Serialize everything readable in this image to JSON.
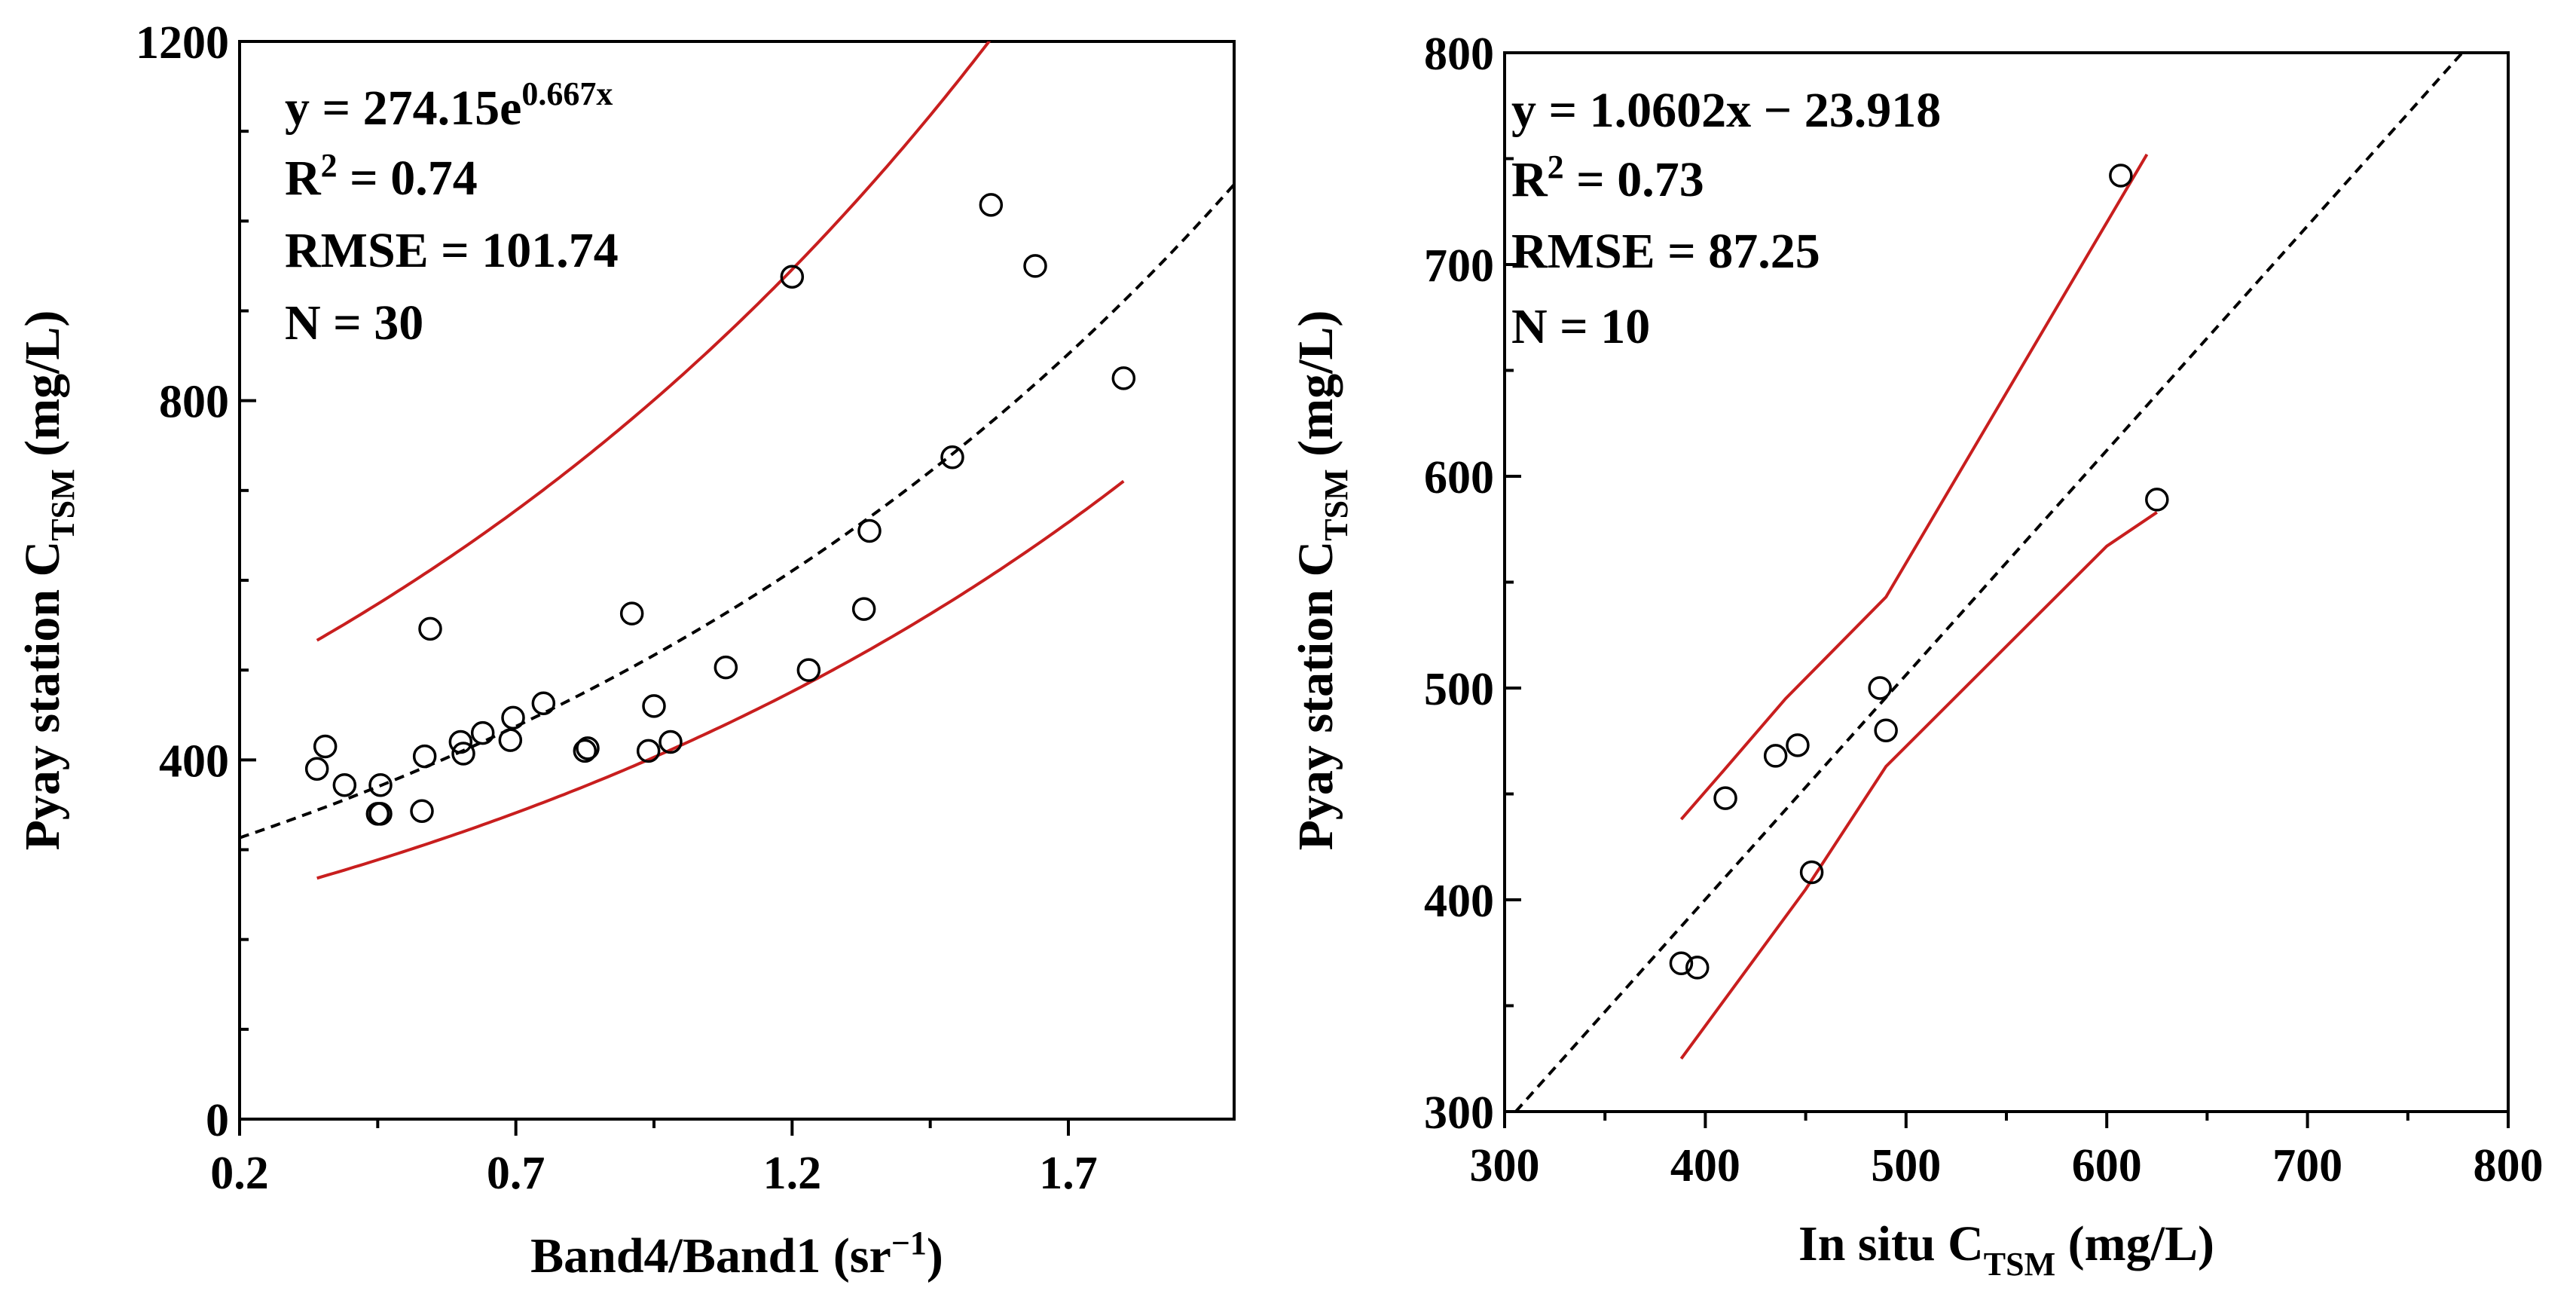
{
  "chart_data": [
    {
      "type": "scatter",
      "panel": "left",
      "xlabel": "Band4/Band1 (sr",
      "xlabel_sup": "−1",
      "xlabel_close": ")",
      "ylabel_main": "Pyay station C",
      "ylabel_sub": "TSM",
      "ylabel_unit": " (mg/L)",
      "xlim": [
        0.2,
        2.0
      ],
      "ylim": [
        0,
        1200
      ],
      "xticks_major": [
        0.2,
        0.7,
        1.2,
        1.7
      ],
      "xtick_labels": [
        "0.2",
        "0.7",
        "1.2",
        "1.7"
      ],
      "xticks_minor": [
        0.45,
        0.95,
        1.45
      ],
      "yticks_major": [
        0,
        400,
        800,
        1200
      ],
      "ytick_labels": [
        "0",
        "400",
        "800",
        "1200"
      ],
      "yticks_minor": [
        100,
        200,
        300,
        500,
        600,
        700,
        900,
        1000,
        1100
      ],
      "equation_prefix": "y = 274.15e",
      "equation_sup": "0.667x",
      "r2_label": "R",
      "r2_value": " = 0.74",
      "rmse": "RMSE = 101.74",
      "n": "N = 30",
      "fit": {
        "form": "exponential",
        "a": 274.15,
        "b": 0.667
      },
      "bands": {
        "upper_factor": 1.55,
        "lower_factor": 0.78,
        "x_range": [
          0.34,
          1.8
        ]
      },
      "points": [
        {
          "x": 0.34,
          "y": 390
        },
        {
          "x": 0.355,
          "y": 415
        },
        {
          "x": 0.39,
          "y": 372
        },
        {
          "x": 0.45,
          "y": 340
        },
        {
          "x": 0.455,
          "y": 372
        },
        {
          "x": 0.455,
          "y": 340
        },
        {
          "x": 0.53,
          "y": 343
        },
        {
          "x": 0.535,
          "y": 404
        },
        {
          "x": 0.545,
          "y": 546
        },
        {
          "x": 0.6,
          "y": 420
        },
        {
          "x": 0.605,
          "y": 407
        },
        {
          "x": 0.64,
          "y": 430
        },
        {
          "x": 0.69,
          "y": 422
        },
        {
          "x": 0.695,
          "y": 447
        },
        {
          "x": 0.75,
          "y": 463
        },
        {
          "x": 0.825,
          "y": 410
        },
        {
          "x": 0.83,
          "y": 413
        },
        {
          "x": 0.91,
          "y": 563
        },
        {
          "x": 0.94,
          "y": 410
        },
        {
          "x": 0.95,
          "y": 460
        },
        {
          "x": 0.98,
          "y": 420
        },
        {
          "x": 1.08,
          "y": 503
        },
        {
          "x": 1.2,
          "y": 938
        },
        {
          "x": 1.23,
          "y": 500
        },
        {
          "x": 1.33,
          "y": 568
        },
        {
          "x": 1.34,
          "y": 655
        },
        {
          "x": 1.49,
          "y": 737
        },
        {
          "x": 1.56,
          "y": 1018
        },
        {
          "x": 1.64,
          "y": 950
        },
        {
          "x": 1.8,
          "y": 825
        }
      ]
    },
    {
      "type": "scatter",
      "panel": "right",
      "xlabel_main": "In situ C",
      "xlabel_sub": "TSM",
      "xlabel_unit": " (mg/L)",
      "ylabel_main": "Pyay station C",
      "ylabel_sub": "TSM",
      "ylabel_unit": " (mg/L)",
      "xlim": [
        300,
        800
      ],
      "ylim": [
        300,
        800
      ],
      "xticks_major": [
        300,
        400,
        500,
        600,
        700,
        800
      ],
      "xtick_labels": [
        "300",
        "400",
        "500",
        "600",
        "700",
        "800"
      ],
      "xticks_minor": [
        350,
        450,
        550,
        650,
        750
      ],
      "yticks_major": [
        300,
        400,
        500,
        600,
        700,
        800
      ],
      "ytick_labels": [
        "300",
        "400",
        "500",
        "600",
        "700",
        "800"
      ],
      "yticks_minor": [
        350,
        450,
        550,
        650,
        750
      ],
      "equation": "y = 1.0602x − 23.918",
      "r2_label": "R",
      "r2_value": " = 0.73",
      "rmse": "RMSE = 87.25",
      "n": "N = 10",
      "fit": {
        "form": "linear",
        "slope": 1.0602,
        "intercept": -23.918
      },
      "upper_band": [
        [
          388,
          438
        ],
        [
          410,
          462
        ],
        [
          440,
          495
        ],
        [
          490,
          543
        ],
        [
          620,
          752
        ]
      ],
      "lower_band": [
        [
          388,
          325
        ],
        [
          450,
          405
        ],
        [
          490,
          463
        ],
        [
          600,
          567
        ],
        [
          625,
          583
        ]
      ],
      "points": [
        {
          "x": 388,
          "y": 370
        },
        {
          "x": 396,
          "y": 368
        },
        {
          "x": 410,
          "y": 448
        },
        {
          "x": 435,
          "y": 468
        },
        {
          "x": 446,
          "y": 473
        },
        {
          "x": 453,
          "y": 413
        },
        {
          "x": 487,
          "y": 500
        },
        {
          "x": 490,
          "y": 480
        },
        {
          "x": 607,
          "y": 742
        },
        {
          "x": 625,
          "y": 589
        }
      ]
    }
  ]
}
